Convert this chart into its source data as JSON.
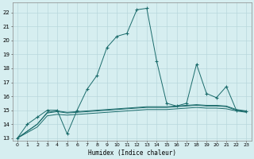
{
  "xlabel": "Humidex (Indice chaleur)",
  "background_color": "#d6eef0",
  "grid_color": "#b8d8dc",
  "line_color": "#1a6b6b",
  "xlim": [
    -0.5,
    23.5
  ],
  "ylim": [
    12.8,
    22.7
  ],
  "xticks": [
    0,
    1,
    2,
    3,
    4,
    5,
    6,
    7,
    8,
    9,
    10,
    11,
    12,
    13,
    14,
    15,
    16,
    17,
    18,
    19,
    20,
    21,
    22,
    23
  ],
  "yticks": [
    13,
    14,
    15,
    16,
    17,
    18,
    19,
    20,
    21,
    22
  ],
  "line1_x": [
    0,
    1,
    2,
    3,
    4,
    5,
    6,
    7,
    8,
    9,
    10,
    11,
    12,
    13,
    14,
    15,
    16,
    17,
    18,
    19,
    20,
    21,
    22,
    23
  ],
  "line1_y": [
    13,
    14,
    14.5,
    15,
    15,
    13.3,
    15,
    16.5,
    17.5,
    19.5,
    20.3,
    20.5,
    22.2,
    22.3,
    18.5,
    15.5,
    15.3,
    15.5,
    18.3,
    16.2,
    15.9,
    16.7,
    15,
    14.9
  ],
  "line2_x": [
    0,
    1,
    2,
    3,
    4,
    5,
    6,
    7,
    8,
    9,
    10,
    11,
    12,
    13,
    14,
    15,
    16,
    17,
    18,
    19,
    20,
    21,
    22,
    23
  ],
  "line2_y": [
    13.0,
    13.5,
    14.0,
    14.8,
    14.9,
    14.8,
    14.85,
    14.9,
    14.95,
    15.0,
    15.05,
    15.1,
    15.15,
    15.2,
    15.2,
    15.2,
    15.25,
    15.3,
    15.35,
    15.3,
    15.3,
    15.25,
    15.0,
    14.9
  ],
  "line3_x": [
    0,
    1,
    2,
    3,
    4,
    5,
    6,
    7,
    8,
    9,
    10,
    11,
    12,
    13,
    14,
    15,
    16,
    17,
    18,
    19,
    20,
    21,
    22,
    23
  ],
  "line3_y": [
    13.0,
    13.5,
    14.0,
    14.85,
    14.95,
    14.85,
    14.9,
    14.95,
    15.0,
    15.05,
    15.1,
    15.15,
    15.2,
    15.25,
    15.25,
    15.25,
    15.3,
    15.35,
    15.4,
    15.35,
    15.35,
    15.3,
    15.05,
    14.95
  ],
  "line4_x": [
    0,
    1,
    2,
    3,
    4,
    5,
    6,
    7,
    8,
    9,
    10,
    11,
    12,
    13,
    14,
    15,
    16,
    17,
    18,
    19,
    20,
    21,
    22,
    23
  ],
  "line4_y": [
    13.0,
    13.4,
    13.8,
    14.6,
    14.7,
    14.65,
    14.7,
    14.75,
    14.8,
    14.85,
    14.9,
    14.95,
    15.0,
    15.05,
    15.05,
    15.05,
    15.1,
    15.15,
    15.2,
    15.15,
    15.15,
    15.1,
    14.95,
    14.85
  ]
}
